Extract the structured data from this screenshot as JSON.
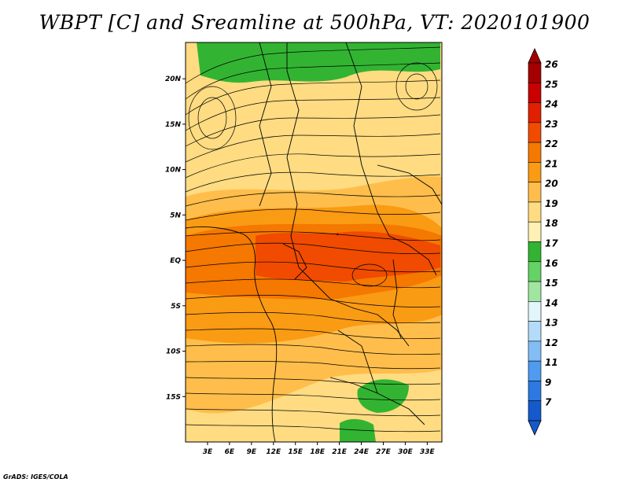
{
  "title": "WBPT [C] and Sreamline at 500hPa, VT: 2020101900",
  "credit": "GrADS: IGES/COLA",
  "map": {
    "lon_range": [
      0,
      35
    ],
    "lat_range": [
      -20,
      24
    ],
    "lat_ticks": [
      {
        "value": 20,
        "label": "20N"
      },
      {
        "value": 15,
        "label": "15N"
      },
      {
        "value": 10,
        "label": "10N"
      },
      {
        "value": 5,
        "label": "5N"
      },
      {
        "value": 0,
        "label": "EQ"
      },
      {
        "value": -5,
        "label": "5S"
      },
      {
        "value": -10,
        "label": "10S"
      },
      {
        "value": -15,
        "label": "15S"
      }
    ],
    "lon_ticks": [
      {
        "value": 3,
        "label": "3E"
      },
      {
        "value": 6,
        "label": "6E"
      },
      {
        "value": 9,
        "label": "9E"
      },
      {
        "value": 12,
        "label": "12E"
      },
      {
        "value": 15,
        "label": "15E"
      },
      {
        "value": 18,
        "label": "18E"
      },
      {
        "value": 21,
        "label": "21E"
      },
      {
        "value": 24,
        "label": "24E"
      },
      {
        "value": 27,
        "label": "27E"
      },
      {
        "value": 30,
        "label": "30E"
      },
      {
        "value": 33,
        "label": "33E"
      }
    ]
  },
  "colorbar": {
    "labels": [
      "26",
      "25",
      "24",
      "23",
      "22",
      "21",
      "20",
      "19",
      "18",
      "17",
      "16",
      "15",
      "14",
      "13",
      "12",
      "11",
      "9",
      "7"
    ],
    "colors": [
      "#a50000",
      "#c80000",
      "#e02000",
      "#f04b00",
      "#f57800",
      "#fa9b14",
      "#ffbe4b",
      "#ffdc82",
      "#fff0b4",
      "#32b432",
      "#64d264",
      "#a0e6a0",
      "#e1f5fa",
      "#b4dcfa",
      "#82bef5",
      "#509bf0",
      "#2d78e1",
      "#145acd"
    ]
  },
  "field_colors": {
    "c17": "#32b432",
    "c18": "#fff0b4",
    "c19": "#ffdc82",
    "c20": "#ffbe4b",
    "c21": "#fa9b14",
    "c22": "#f57800",
    "c23": "#f04b00"
  }
}
